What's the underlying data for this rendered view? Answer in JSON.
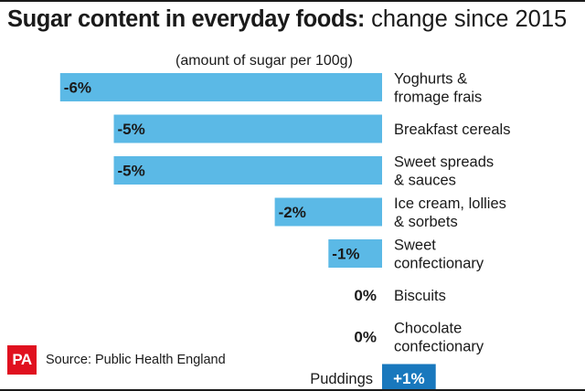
{
  "header": {
    "title_bold": "Sugar content in everyday foods:",
    "title_rest": " change since 2015"
  },
  "chart_data": {
    "type": "bar",
    "orientation": "horizontal",
    "subtitle": "(amount of sugar per 100g)",
    "categories": [
      [
        "Yoghurts &",
        "fromage frais"
      ],
      [
        "Breakfast cereals"
      ],
      [
        "Sweet spreads",
        "& sauces"
      ],
      [
        "Ice cream, lollies",
        "& sorbets"
      ],
      [
        "Sweet",
        "confectionary"
      ],
      [
        "Biscuits"
      ],
      [
        "Chocolate",
        "confectionary"
      ],
      [
        "Puddings"
      ]
    ],
    "values": [
      -6,
      -5,
      -5,
      -2,
      -1,
      0,
      0,
      1
    ],
    "labels": [
      "-6%",
      "-5%",
      "-5%",
      "-2%",
      "-1%",
      "0%",
      "0%",
      "+1%"
    ],
    "value_unit": "%",
    "colors": {
      "negative": "#5bb9e6",
      "positive": "#1978bd"
    }
  },
  "footer": {
    "logo_text": "PA",
    "source": "Source: Public Health England"
  },
  "colors": {
    "logo": "#e0111f",
    "text": "#1a1a1a"
  }
}
